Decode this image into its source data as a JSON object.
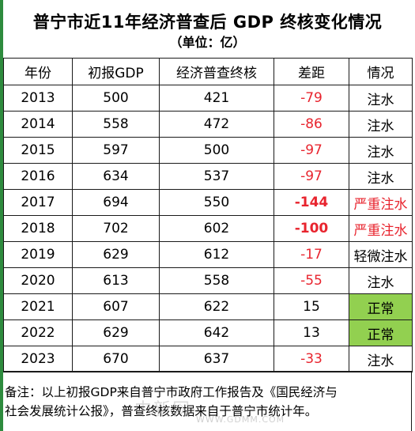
{
  "title": "普宁市近11年经济普查后 GDP 终核变化情况",
  "subtitle": "（单位：亿）",
  "headers": [
    "年份",
    "初报GDP",
    "经济普查终核",
    "差距",
    "情况"
  ],
  "rows": [
    {
      "year": "2013",
      "initial": "500",
      "final": "421",
      "diff": "-79",
      "status": "注水",
      "diff_style": "red",
      "status_style": ""
    },
    {
      "year": "2014",
      "initial": "558",
      "final": "472",
      "diff": "-86",
      "status": "注水",
      "diff_style": "red",
      "status_style": ""
    },
    {
      "year": "2015",
      "initial": "597",
      "final": "500",
      "diff": "-97",
      "status": "注水",
      "diff_style": "red",
      "status_style": ""
    },
    {
      "year": "2016",
      "initial": "634",
      "final": "537",
      "diff": "-97",
      "status": "注水",
      "diff_style": "red",
      "status_style": ""
    },
    {
      "year": "2017",
      "initial": "694",
      "final": "550",
      "diff": "-144",
      "status": "严重注水",
      "diff_style": "red-bold",
      "status_style": "red"
    },
    {
      "year": "2018",
      "initial": "702",
      "final": "602",
      "diff": "-100",
      "status": "严重注水",
      "diff_style": "red-bold",
      "status_style": "red"
    },
    {
      "year": "2019",
      "initial": "629",
      "final": "612",
      "diff": "-17",
      "status": "轻微注水",
      "diff_style": "red",
      "status_style": ""
    },
    {
      "year": "2020",
      "initial": "613",
      "final": "558",
      "diff": "-55",
      "status": "注水",
      "diff_style": "red",
      "status_style": ""
    },
    {
      "year": "2021",
      "initial": "607",
      "final": "622",
      "diff": "15",
      "status": "正常",
      "diff_style": "",
      "status_style": "ok"
    },
    {
      "year": "2022",
      "initial": "629",
      "final": "642",
      "diff": "13",
      "status": "正常",
      "diff_style": "",
      "status_style": "ok"
    },
    {
      "year": "2023",
      "initial": "670",
      "final": "637",
      "diff": "-33",
      "status": "注水",
      "diff_style": "red",
      "status_style": ""
    }
  ],
  "note_line1": "备注：以上初报GDP来自普宁市政府工作报告及《国民经济与",
  "note_line2": "社会发展统计公报》，普查终核数据来自于普宁市统计年。",
  "watermark": "中新网",
  "watermark_url": "WWW.GDMM.COM",
  "colors": {
    "negative_text": "#e8242e",
    "normal_fill": "#92d050",
    "border": "#1a1a1a",
    "left_bar": "#2e8b3e"
  }
}
